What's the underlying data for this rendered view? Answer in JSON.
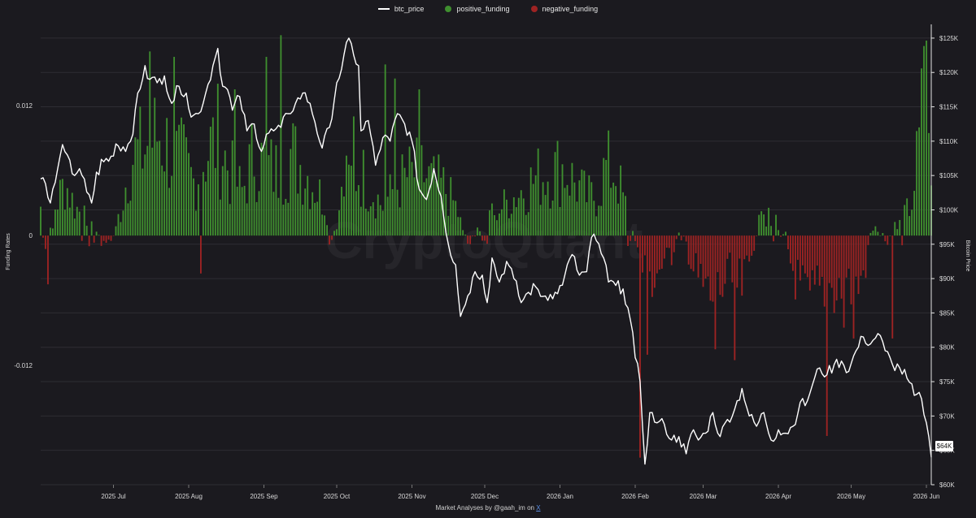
{
  "legend": {
    "btc_price": "btc_price",
    "positive_funding": "positive_funding",
    "negative_funding": "negative_funding"
  },
  "colors": {
    "background": "#1b1a1f",
    "grid": "#2e2d33",
    "price_line": "#ffffff",
    "positive": "#3f8f2f",
    "negative": "#9e2323",
    "link": "#5b8fe8"
  },
  "watermark": "CryptoQuant",
  "footer": {
    "text": "Market Analyses by @gaah_im on ",
    "link": "X"
  },
  "price_tag": "$64K",
  "chart_data": {
    "type": "bar+line",
    "xlabel": "",
    "ylabel_left": "Funding Rates",
    "ylabel_right": "Bitcoin Price",
    "x_range": [
      "2025-06-01",
      "2026-06-03"
    ],
    "x_ticks": [
      {
        "date": "2025-07-01",
        "label": "2025 Jul"
      },
      {
        "date": "2025-08-01",
        "label": "2025 Aug"
      },
      {
        "date": "2025-09-01",
        "label": "2025 Sep"
      },
      {
        "date": "2025-10-01",
        "label": "2025 Oct"
      },
      {
        "date": "2025-11-01",
        "label": "2025 Nov"
      },
      {
        "date": "2025-12-01",
        "label": "2025 Dec"
      },
      {
        "date": "2026-01-01",
        "label": "2026 Jan"
      },
      {
        "date": "2026-02-01",
        "label": "2026 Feb"
      },
      {
        "date": "2026-03-01",
        "label": "2026 Mar"
      },
      {
        "date": "2026-04-01",
        "label": "2026 Apr"
      },
      {
        "date": "2026-05-01",
        "label": "2026 May"
      },
      {
        "date": "2026-06-01",
        "label": "2026 Jun"
      }
    ],
    "y_left": {
      "range": [
        -0.023,
        0.0195
      ],
      "ticks": [
        {
          "v": 0.012,
          "label": "0.012"
        },
        {
          "v": 0,
          "label": "0"
        },
        {
          "v": -0.012,
          "label": "-0.012"
        }
      ]
    },
    "y_right": {
      "range": [
        60000,
        127000
      ],
      "ticks": [
        {
          "v": 60000,
          "label": "$60K"
        },
        {
          "v": 65000,
          "label": "$65K"
        },
        {
          "v": 70000,
          "label": "$70K"
        },
        {
          "v": 75000,
          "label": "$75K"
        },
        {
          "v": 80000,
          "label": "$80K"
        },
        {
          "v": 85000,
          "label": "$85K"
        },
        {
          "v": 90000,
          "label": "$90K"
        },
        {
          "v": 95000,
          "label": "$95K"
        },
        {
          "v": 100000,
          "label": "$100K"
        },
        {
          "v": 105000,
          "label": "$105K"
        },
        {
          "v": 110000,
          "label": "$110K"
        },
        {
          "v": 115000,
          "label": "$115K"
        },
        {
          "v": 120000,
          "label": "$120K"
        },
        {
          "v": 125000,
          "label": "$125K"
        }
      ]
    },
    "funding_keypoints": [
      [
        "2025-06-01",
        0.003
      ],
      [
        "2025-06-04",
        -0.0045
      ],
      [
        "2025-06-07",
        0.003
      ],
      [
        "2025-06-11",
        0.0055
      ],
      [
        "2025-06-15",
        0.003
      ],
      [
        "2025-06-19",
        0.002
      ],
      [
        "2025-06-23",
        0.0015
      ],
      [
        "2025-06-26",
        -0.001
      ],
      [
        "2025-06-30",
        -0.0008
      ],
      [
        "2025-07-04",
        0.0025
      ],
      [
        "2025-07-08",
        0.008
      ],
      [
        "2025-07-12",
        0.0085
      ],
      [
        "2025-07-16",
        0.0095
      ],
      [
        "2025-07-20",
        0.0105
      ],
      [
        "2025-07-25",
        0.0085
      ],
      [
        "2025-07-30",
        0.0075
      ],
      [
        "2025-08-03",
        0.0055
      ],
      [
        "2025-08-08",
        0.0085
      ],
      [
        "2025-08-13",
        0.01
      ],
      [
        "2025-08-18",
        0.0065
      ],
      [
        "2025-08-23",
        0.0045
      ],
      [
        "2025-08-28",
        0.0085
      ],
      [
        "2025-09-02",
        0.007
      ],
      [
        "2025-09-07",
        0.0065
      ],
      [
        "2025-09-12",
        0.0085
      ],
      [
        "2025-09-17",
        0.007
      ],
      [
        "2025-09-22",
        0.005
      ],
      [
        "2025-09-26",
        0.0035
      ],
      [
        "2025-09-30",
        0.0005
      ],
      [
        "2025-10-04",
        0.005
      ],
      [
        "2025-10-08",
        0.0065
      ],
      [
        "2025-10-12",
        0.006
      ],
      [
        "2025-10-16",
        0.0045
      ],
      [
        "2025-10-20",
        0.003
      ],
      [
        "2025-10-25",
        0.005
      ],
      [
        "2025-10-30",
        0.006
      ],
      [
        "2025-11-04",
        0.0065
      ],
      [
        "2025-11-09",
        0.0055
      ],
      [
        "2025-11-14",
        0.005
      ],
      [
        "2025-11-19",
        0.003
      ],
      [
        "2025-11-24",
        -0.001
      ],
      [
        "2025-11-28",
        0.0008
      ],
      [
        "2025-12-03",
        0.002
      ],
      [
        "2025-12-08",
        0.003
      ],
      [
        "2025-12-13",
        0.004
      ],
      [
        "2025-12-18",
        0.005
      ],
      [
        "2025-12-23",
        0.006
      ],
      [
        "2025-12-28",
        0.0065
      ],
      [
        "2026-01-02",
        0.007
      ],
      [
        "2026-01-07",
        0.0055
      ],
      [
        "2026-01-12",
        0.004
      ],
      [
        "2026-01-16",
        0.004
      ],
      [
        "2026-01-20",
        0.007
      ],
      [
        "2026-01-24",
        0.0065
      ],
      [
        "2026-01-28",
        0.003
      ],
      [
        "2026-02-01",
        -0.0005
      ],
      [
        "2026-02-04",
        -0.0035
      ],
      [
        "2026-02-08",
        -0.0045
      ],
      [
        "2026-02-12",
        -0.003
      ],
      [
        "2026-02-16",
        -0.002
      ],
      [
        "2026-02-20",
        0.0015
      ],
      [
        "2026-02-24",
        -0.003
      ],
      [
        "2026-02-28",
        -0.005
      ],
      [
        "2026-03-04",
        -0.0065
      ],
      [
        "2026-03-08",
        -0.0055
      ],
      [
        "2026-03-12",
        -0.0045
      ],
      [
        "2026-03-16",
        -0.006
      ],
      [
        "2026-03-20",
        -0.0035
      ],
      [
        "2026-03-24",
        0.0015
      ],
      [
        "2026-03-28",
        0.0025
      ],
      [
        "2026-04-01",
        0.001
      ],
      [
        "2026-04-05",
        -0.002
      ],
      [
        "2026-04-09",
        -0.005
      ],
      [
        "2026-04-13",
        -0.0075
      ],
      [
        "2026-04-17",
        -0.006
      ],
      [
        "2026-04-21",
        -0.005
      ],
      [
        "2026-04-25",
        -0.0055
      ],
      [
        "2026-04-29",
        -0.0045
      ],
      [
        "2026-05-03",
        -0.006
      ],
      [
        "2026-05-07",
        -0.003
      ],
      [
        "2026-05-11",
        0.0015
      ],
      [
        "2026-05-15",
        -0.0015
      ],
      [
        "2026-05-19",
        0.0015
      ],
      [
        "2026-05-23",
        0.002
      ],
      [
        "2026-05-26",
        0.0035
      ],
      [
        "2026-05-29",
        0.009
      ],
      [
        "2026-06-01",
        0.0175
      ],
      [
        "2026-06-03",
        0.006
      ]
    ],
    "funding_spikes": [
      [
        "2025-06-04",
        -0.0045
      ],
      [
        "2025-07-16",
        0.017
      ],
      [
        "2025-07-26",
        0.0165
      ],
      [
        "2025-08-06",
        -0.0035
      ],
      [
        "2025-08-20",
        0.0135
      ],
      [
        "2025-09-02",
        0.0165
      ],
      [
        "2025-09-08",
        0.0185
      ],
      [
        "2025-10-08",
        0.011
      ],
      [
        "2025-10-21",
        0.0158
      ],
      [
        "2025-10-25",
        0.0145
      ],
      [
        "2025-11-04",
        0.0135
      ],
      [
        "2026-02-03",
        -0.0205
      ],
      [
        "2026-02-06",
        -0.011
      ],
      [
        "2026-03-06",
        -0.0105
      ],
      [
        "2026-03-14",
        -0.0115
      ],
      [
        "2026-04-21",
        -0.0185
      ],
      [
        "2026-04-28",
        -0.0085
      ],
      [
        "2026-05-02",
        -0.0095
      ],
      [
        "2026-05-18",
        -0.0095
      ],
      [
        "2026-05-31",
        0.0175
      ],
      [
        "2026-06-01",
        0.018
      ]
    ],
    "btc_price": [
      [
        "2025-06-01",
        104500
      ],
      [
        "2025-06-03",
        103800
      ],
      [
        "2025-06-05",
        101000
      ],
      [
        "2025-06-07",
        104000
      ],
      [
        "2025-06-10",
        109500
      ],
      [
        "2025-06-12",
        108000
      ],
      [
        "2025-06-15",
        105000
      ],
      [
        "2025-06-17",
        106000
      ],
      [
        "2025-06-19",
        104500
      ],
      [
        "2025-06-22",
        101000
      ],
      [
        "2025-06-24",
        105500
      ],
      [
        "2025-06-27",
        107000
      ],
      [
        "2025-06-30",
        107800
      ],
      [
        "2025-07-03",
        109300
      ],
      [
        "2025-07-06",
        108500
      ],
      [
        "2025-07-09",
        111000
      ],
      [
        "2025-07-11",
        117000
      ],
      [
        "2025-07-14",
        121000
      ],
      [
        "2025-07-16",
        119000
      ],
      [
        "2025-07-19",
        118500
      ],
      [
        "2025-07-22",
        119500
      ],
      [
        "2025-07-25",
        115500
      ],
      [
        "2025-07-28",
        118000
      ],
      [
        "2025-07-31",
        117000
      ],
      [
        "2025-08-02",
        113500
      ],
      [
        "2025-08-05",
        114000
      ],
      [
        "2025-08-08",
        117000
      ],
      [
        "2025-08-11",
        121000
      ],
      [
        "2025-08-13",
        123500
      ],
      [
        "2025-08-15",
        118000
      ],
      [
        "2025-08-17",
        117500
      ],
      [
        "2025-08-19",
        114500
      ],
      [
        "2025-08-22",
        116500
      ],
      [
        "2025-08-25",
        111500
      ],
      [
        "2025-08-28",
        112500
      ],
      [
        "2025-08-31",
        108500
      ],
      [
        "2025-09-02",
        111000
      ],
      [
        "2025-09-05",
        111500
      ],
      [
        "2025-09-08",
        112000
      ],
      [
        "2025-09-11",
        114000
      ],
      [
        "2025-09-14",
        115500
      ],
      [
        "2025-09-17",
        117000
      ],
      [
        "2025-09-20",
        115500
      ],
      [
        "2025-09-22",
        112800
      ],
      [
        "2025-09-25",
        109000
      ],
      [
        "2025-09-28",
        112000
      ],
      [
        "2025-10-01",
        118500
      ],
      [
        "2025-10-03",
        120500
      ],
      [
        "2025-10-06",
        125000
      ],
      [
        "2025-10-08",
        122500
      ],
      [
        "2025-10-10",
        121000
      ],
      [
        "2025-10-11",
        111500
      ],
      [
        "2025-10-14",
        113000
      ],
      [
        "2025-10-17",
        106500
      ],
      [
        "2025-10-20",
        110500
      ],
      [
        "2025-10-23",
        110000
      ],
      [
        "2025-10-26",
        114000
      ],
      [
        "2025-10-29",
        112500
      ],
      [
        "2025-11-01",
        110000
      ],
      [
        "2025-11-04",
        103000
      ],
      [
        "2025-11-07",
        101500
      ],
      [
        "2025-11-10",
        106000
      ],
      [
        "2025-11-13",
        102000
      ],
      [
        "2025-11-16",
        95000
      ],
      [
        "2025-11-19",
        92000
      ],
      [
        "2025-11-21",
        84500
      ],
      [
        "2025-11-24",
        87500
      ],
      [
        "2025-11-27",
        91000
      ],
      [
        "2025-11-30",
        90500
      ],
      [
        "2025-12-02",
        86500
      ],
      [
        "2025-12-04",
        93000
      ],
      [
        "2025-12-07",
        89500
      ],
      [
        "2025-12-10",
        92500
      ],
      [
        "2025-12-13",
        90000
      ],
      [
        "2025-12-16",
        86500
      ],
      [
        "2025-12-19",
        88000
      ],
      [
        "2025-12-22",
        88800
      ],
      [
        "2025-12-25",
        87400
      ],
      [
        "2025-12-28",
        87700
      ],
      [
        "2025-12-31",
        87800
      ],
      [
        "2026-01-03",
        90500
      ],
      [
        "2026-01-06",
        93500
      ],
      [
        "2026-01-09",
        90500
      ],
      [
        "2026-01-12",
        91000
      ],
      [
        "2026-01-14",
        96000
      ],
      [
        "2026-01-16",
        95500
      ],
      [
        "2026-01-19",
        93000
      ],
      [
        "2026-01-21",
        89500
      ],
      [
        "2026-01-24",
        89000
      ],
      [
        "2026-01-27",
        88500
      ],
      [
        "2026-01-30",
        84000
      ],
      [
        "2026-02-01",
        78500
      ],
      [
        "2026-02-03",
        75000
      ],
      [
        "2026-02-05",
        63000
      ],
      [
        "2026-02-07",
        70500
      ],
      [
        "2026-02-10",
        69000
      ],
      [
        "2026-02-13",
        68800
      ],
      [
        "2026-02-16",
        66500
      ],
      [
        "2026-02-19",
        67000
      ],
      [
        "2026-02-22",
        64500
      ],
      [
        "2026-02-25",
        68000
      ],
      [
        "2026-02-27",
        66500
      ],
      [
        "2026-03-02",
        67500
      ],
      [
        "2026-03-05",
        70500
      ],
      [
        "2026-03-08",
        67000
      ],
      [
        "2026-03-11",
        69500
      ],
      [
        "2026-03-14",
        71000
      ],
      [
        "2026-03-17",
        74000
      ],
      [
        "2026-03-20",
        70000
      ],
      [
        "2026-03-23",
        68500
      ],
      [
        "2026-03-26",
        70500
      ],
      [
        "2026-03-29",
        66500
      ],
      [
        "2026-04-01",
        68000
      ],
      [
        "2026-04-04",
        67500
      ],
      [
        "2026-04-07",
        68500
      ],
      [
        "2026-04-10",
        72000
      ],
      [
        "2026-04-12",
        71500
      ],
      [
        "2026-04-15",
        74500
      ],
      [
        "2026-04-18",
        77000
      ],
      [
        "2026-04-21",
        76000
      ],
      [
        "2026-04-24",
        77500
      ],
      [
        "2026-04-27",
        78000
      ],
      [
        "2026-04-30",
        76500
      ],
      [
        "2026-05-03",
        79500
      ],
      [
        "2026-05-06",
        81500
      ],
      [
        "2026-05-09",
        80500
      ],
      [
        "2026-05-12",
        82000
      ],
      [
        "2026-05-15",
        79500
      ],
      [
        "2026-05-18",
        77500
      ],
      [
        "2026-05-21",
        77000
      ],
      [
        "2026-05-24",
        75500
      ],
      [
        "2026-05-27",
        73000
      ],
      [
        "2026-05-30",
        72500
      ],
      [
        "2026-06-01",
        69000
      ],
      [
        "2026-06-03",
        64000
      ]
    ]
  }
}
